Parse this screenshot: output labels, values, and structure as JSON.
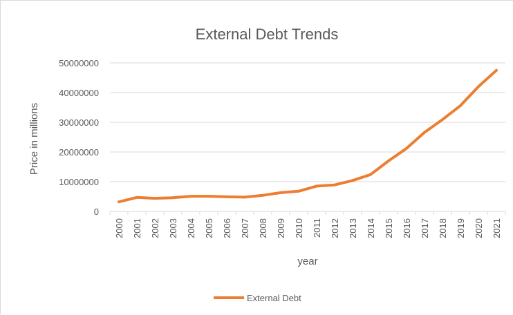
{
  "chart_data": {
    "type": "line",
    "title": "External Debt Trends",
    "xlabel": "year",
    "ylabel": "Price in millions",
    "categories": [
      "2000",
      "2001",
      "2002",
      "2003",
      "2004",
      "2005",
      "2006",
      "2007",
      "2008",
      "2009",
      "2010",
      "2011",
      "2012",
      "2013",
      "2014",
      "2015",
      "2016",
      "2017",
      "2018",
      "2019",
      "2020",
      "2021"
    ],
    "y_ticks": [
      "0",
      "10000000",
      "20000000",
      "30000000",
      "40000000",
      "50000000"
    ],
    "ylim": [
      0,
      50000000
    ],
    "grid": true,
    "legend_position": "bottom",
    "series": [
      {
        "name": "External Debt",
        "color": "#ed7d31",
        "values": [
          3200000,
          4700000,
          4400000,
          4600000,
          5100000,
          5100000,
          4900000,
          4800000,
          5400000,
          6300000,
          6800000,
          8500000,
          8900000,
          10400000,
          12400000,
          17000000,
          21200000,
          26600000,
          30900000,
          35600000,
          42000000,
          47500000
        ]
      }
    ]
  }
}
